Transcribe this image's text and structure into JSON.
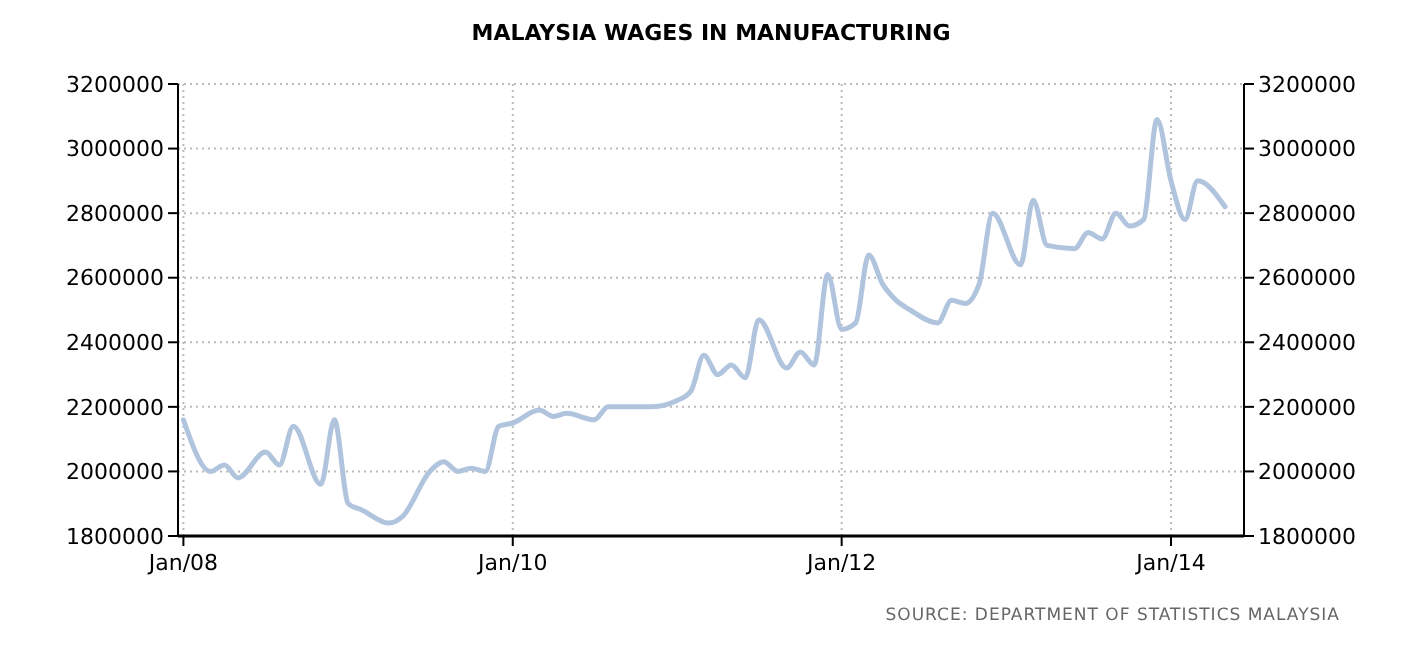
{
  "chart_data": {
    "type": "line",
    "title": "MALAYSIA WAGES IN MANUFACTURING",
    "x": [
      "2008-01",
      "2008-03",
      "2008-04",
      "2008-05",
      "2008-07",
      "2008-08",
      "2008-09",
      "2008-11",
      "2008-12",
      "2009-01",
      "2009-02",
      "2009-04",
      "2009-05",
      "2009-07",
      "2009-08",
      "2009-09",
      "2009-10",
      "2009-11",
      "2009-12",
      "2010-01",
      "2010-03",
      "2010-04",
      "2010-05",
      "2010-07",
      "2010-08",
      "2010-10",
      "2010-11",
      "2011-01",
      "2011-02",
      "2011-03",
      "2011-04",
      "2011-05",
      "2011-06",
      "2011-07",
      "2011-09",
      "2011-10",
      "2011-11",
      "2011-12",
      "2012-01",
      "2012-02",
      "2012-03",
      "2012-04",
      "2012-05",
      "2012-06",
      "2012-08",
      "2012-09",
      "2012-10",
      "2012-11",
      "2012-12",
      "2013-02",
      "2013-03",
      "2013-04",
      "2013-06",
      "2013-07",
      "2013-08",
      "2013-09",
      "2013-10",
      "2013-11",
      "2013-12",
      "2014-01",
      "2014-02",
      "2014-03",
      "2014-05"
    ],
    "series": [
      {
        "color": "#b0c4de",
        "values": [
          2160000,
          2000000,
          2020000,
          1980000,
          2060000,
          2020000,
          2140000,
          1960000,
          2160000,
          1900000,
          1880000,
          1840000,
          1860000,
          2000000,
          2030000,
          2000000,
          2010000,
          2000000,
          2140000,
          2150000,
          2190000,
          2170000,
          2180000,
          2160000,
          2200000,
          2200000,
          2200000,
          2220000,
          2250000,
          2360000,
          2300000,
          2330000,
          2290000,
          2470000,
          2320000,
          2370000,
          2330000,
          2610000,
          2440000,
          2460000,
          2670000,
          2580000,
          2530000,
          2500000,
          2460000,
          2530000,
          2520000,
          2580000,
          2800000,
          2640000,
          2840000,
          2700000,
          2690000,
          2740000,
          2720000,
          2800000,
          2760000,
          2780000,
          3090000,
          2900000,
          2780000,
          2900000,
          2820000
        ]
      }
    ],
    "xlim": [
      "2007-12-20",
      "2014-06-12"
    ],
    "xticks": [
      {
        "value": "2008-01",
        "label": "Jan/08"
      },
      {
        "value": "2010-01",
        "label": "Jan/10"
      },
      {
        "value": "2012-01",
        "label": "Jan/12"
      },
      {
        "value": "2014-01",
        "label": "Jan/14"
      }
    ],
    "ylim": [
      1800000,
      3200000
    ],
    "yticks": [
      1800000,
      2000000,
      2200000,
      2400000,
      2600000,
      2800000,
      3000000,
      3200000
    ],
    "y2lim": [
      1800000,
      3200000
    ],
    "y2ticks": [
      1800000,
      2000000,
      2200000,
      2400000,
      2600000,
      2800000,
      3000000,
      3200000
    ],
    "grid": true,
    "line_style": "solid",
    "marker": "none",
    "annotations": [
      "SOURCE: DEPARTMENT OF STATISTICS MALAYSIA"
    ]
  }
}
